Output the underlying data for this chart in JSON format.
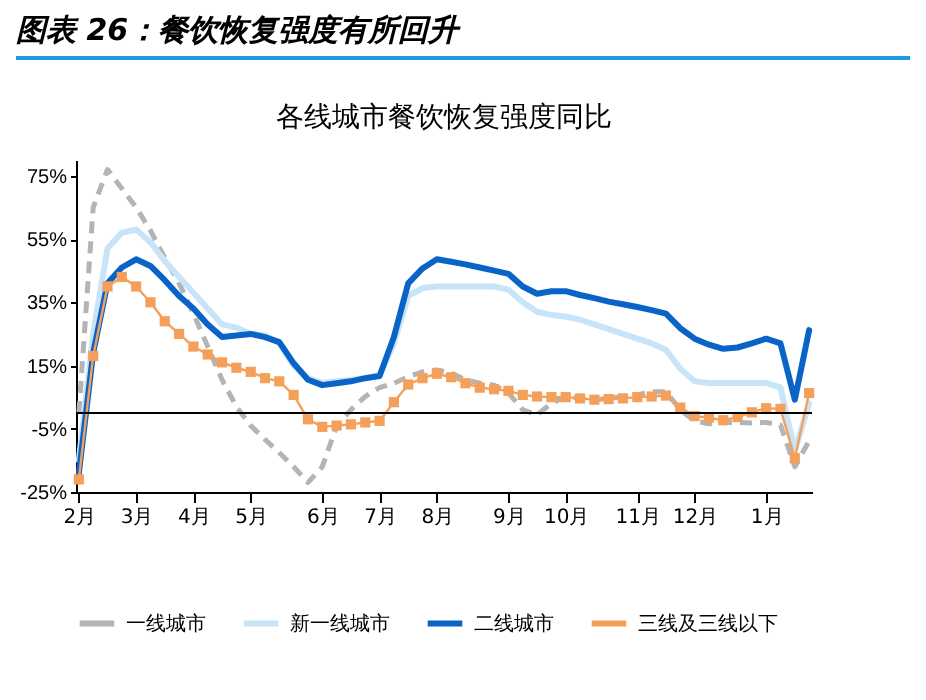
{
  "chart_data": {
    "type": "line",
    "title": "图表 26：餐饮恢复强度有所回升",
    "subtitle": "各线城市餐饮恢复强度同比",
    "categories": [
      "2月",
      null,
      null,
      null,
      "3月",
      null,
      null,
      null,
      "4月",
      null,
      null,
      null,
      "5月",
      null,
      null,
      null,
      null,
      "6月",
      null,
      null,
      null,
      "7月",
      null,
      null,
      null,
      "8月",
      null,
      null,
      null,
      null,
      "9月",
      null,
      null,
      null,
      "10月",
      null,
      null,
      null,
      null,
      "11月",
      null,
      null,
      null,
      "12月",
      null,
      null,
      null,
      null,
      "1月",
      null,
      null,
      null
    ],
    "series": [
      {
        "name": "一线城市",
        "color": "#b4b4b4",
        "line_style": "dashed",
        "values": [
          0,
          65,
          77,
          71,
          65,
          57.7,
          49,
          41,
          31.4,
          21,
          10.5,
          2,
          -4,
          -8.4,
          -12.6,
          -17,
          -22,
          -17,
          -4.2,
          1,
          5.2,
          8,
          9.4,
          11.5,
          13,
          13.6,
          12.6,
          10.5,
          9.4,
          8.8,
          6.3,
          1,
          -0.6,
          3,
          5.2,
          4.6,
          4.2,
          4.6,
          5.2,
          5.8,
          6.7,
          6.7,
          1,
          -2.5,
          -3.4,
          -3,
          -3,
          -3.2,
          -3,
          -3.8,
          -17,
          -8.8
        ]
      },
      {
        "name": "新一线城市",
        "color": "#c8e4f8",
        "line_style": "solid",
        "values": [
          -15,
          25,
          52,
          57,
          58,
          54,
          48,
          43,
          38,
          33,
          28,
          27,
          25,
          24.5,
          22,
          15,
          11,
          9.5,
          10,
          10.5,
          11,
          12,
          22,
          37,
          39.5,
          40,
          40,
          40,
          40,
          40,
          39,
          35,
          32,
          31,
          30.5,
          29.5,
          28,
          26.5,
          25,
          23.5,
          22,
          20,
          14,
          10,
          9.5,
          9.5,
          9.5,
          9.5,
          9.5,
          8,
          -12,
          3
        ]
      },
      {
        "name": "二线城市",
        "color": "#0a64c8",
        "line_style": "solid",
        "values": [
          -19,
          19,
          41,
          46,
          48.6,
          46.5,
          42,
          37,
          33,
          28,
          24,
          24.5,
          25,
          24,
          22.4,
          15.7,
          10.5,
          8.8,
          9.4,
          10,
          11,
          11.7,
          24,
          41,
          45.7,
          48.6,
          47.8,
          47,
          46,
          45,
          44,
          40,
          37.7,
          38.5,
          38.5,
          37.3,
          36.3,
          35.2,
          34.4,
          33.5,
          32.5,
          31.4,
          26.8,
          23.5,
          21.6,
          20.3,
          20.7,
          22,
          23.5,
          22,
          4.2,
          26.2
        ]
      },
      {
        "name": "三线及三线以下",
        "color": "#f5a05a",
        "line_style": "solid",
        "marker": "square",
        "values": [
          -21,
          18,
          40,
          43,
          40,
          35,
          29,
          25,
          21,
          18.5,
          16,
          14.3,
          13,
          11,
          10,
          5.7,
          -2,
          -4.4,
          -4,
          -3.6,
          -3,
          -2.5,
          3.4,
          9,
          11,
          12.4,
          11.3,
          9.4,
          8,
          7.5,
          7,
          5.7,
          5.2,
          5,
          5,
          4.6,
          4.2,
          4.4,
          4.6,
          5,
          5.2,
          5.5,
          1.7,
          -1,
          -1.5,
          -2.3,
          -1.3,
          0.2,
          1.5,
          1.3,
          -14.3,
          6.3
        ]
      }
    ],
    "ylim": [
      -25,
      80
    ],
    "yticks": [
      {
        "value": -25,
        "label": "-25%"
      },
      {
        "value": -5,
        "label": "-5%"
      },
      {
        "value": 15,
        "label": "15%"
      },
      {
        "value": 35,
        "label": "35%"
      },
      {
        "value": 55,
        "label": "55%"
      },
      {
        "value": 75,
        "label": "75%"
      }
    ],
    "ref_lines": [
      {
        "axis": "y",
        "value": 0,
        "color": "#000000"
      }
    ],
    "grid": false,
    "legend": "bottom"
  }
}
